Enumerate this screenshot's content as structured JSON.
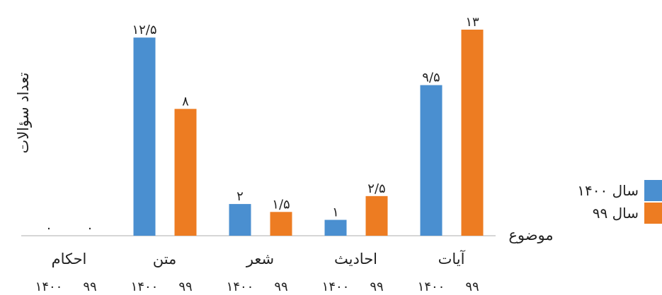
{
  "chart_data": {
    "type": "bar",
    "ylabel": "تعداد سؤالات",
    "xlabel": "موضوع",
    "ylim": [
      0,
      13
    ],
    "grid": false,
    "legend_position": "right",
    "categories": [
      "احکام",
      "متن",
      "شعر",
      "احادیث",
      "آیات"
    ],
    "series": [
      {
        "name": "سال ۱۴۰۰",
        "sub_label": "۱۴۰۰",
        "color": "#4a8fd0",
        "values": [
          0,
          12.5,
          2,
          1,
          9.5
        ],
        "value_labels": [
          "۰",
          "۱۲/۵",
          "۲",
          "۱",
          "۹/۵"
        ]
      },
      {
        "name": "سال ۹۹",
        "sub_label": "۹۹",
        "color": "#ed7c22",
        "values": [
          0,
          8,
          1.5,
          2.5,
          13
        ],
        "value_labels": [
          "۰",
          "۸",
          "۱/۵",
          "۲/۵",
          "۱۳"
        ]
      }
    ]
  }
}
